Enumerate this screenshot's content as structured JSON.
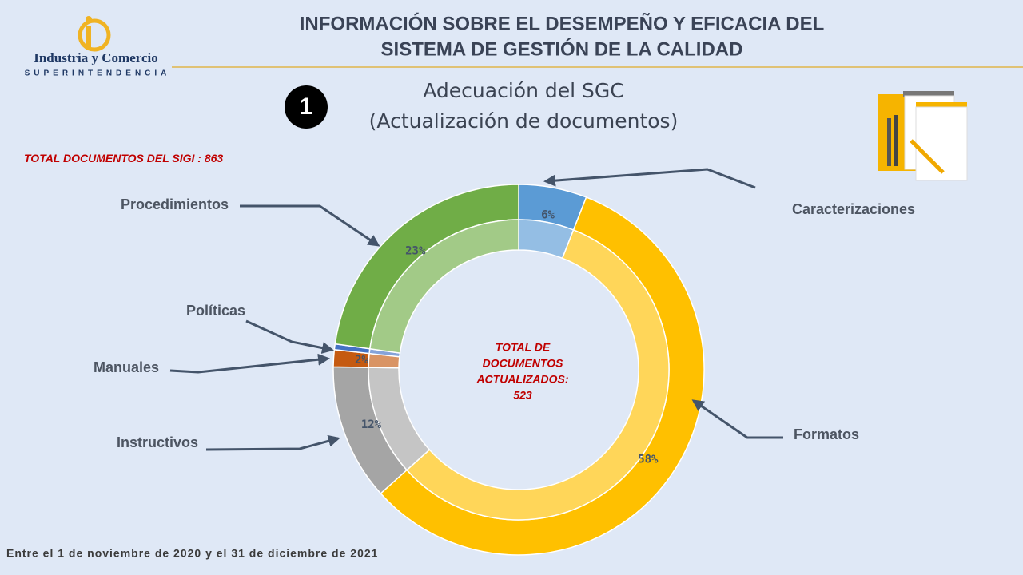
{
  "header": {
    "title": [
      "INFORMACIÓN SOBRE EL DESEMPEÑO Y EFICACIA DEL",
      "SISTEMA DE GESTIÓN DE LA  CALIDAD"
    ],
    "logo_name": "Industria y Comercio",
    "logo_sub": "SUPERINTENDENCIA"
  },
  "badge": 1,
  "total_sigi_label": "TOTAL DOCUMENTOS DEL SIGI :",
  "total_sigi": 863,
  "footer": "Entre el 1 de noviembre de 2020 y el 31 de diciembre de 2021",
  "chart_data": {
    "type": "donut",
    "title": [
      "Adecuación del SGC",
      "(Actualización de documentos)"
    ],
    "categories": [
      "Caracterizaciones",
      "Formatos",
      "Instructivos",
      "Manuales",
      "Políticas",
      "Procedimientos"
    ],
    "values": [
      6,
      58,
      12,
      1.5,
      0.5,
      23
    ],
    "value_labels": [
      "6%",
      "58%",
      "12%",
      "2%",
      null,
      "23%"
    ],
    "colors": [
      "#5b9bd5",
      "#ffc000",
      "#a5a5a5",
      "#c55a11",
      "#4472c4",
      "#70ad47"
    ],
    "center_label": [
      "TOTAL DE",
      "DOCUMENTOS",
      "ACTUALIZADOS:"
    ],
    "center_value": 523
  }
}
